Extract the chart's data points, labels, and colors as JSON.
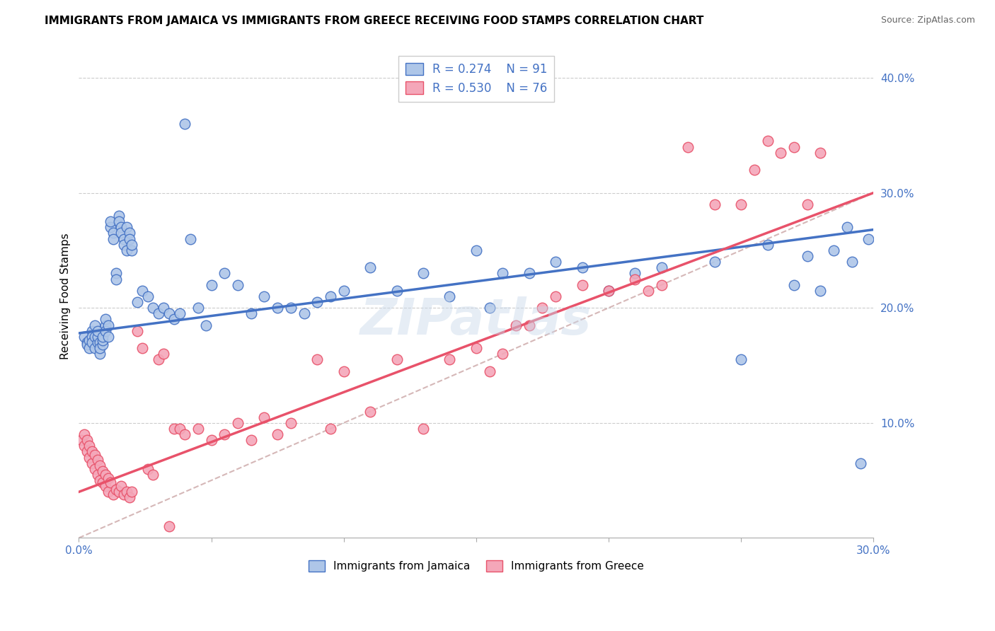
{
  "title": "IMMIGRANTS FROM JAMAICA VS IMMIGRANTS FROM GREECE RECEIVING FOOD STAMPS CORRELATION CHART",
  "source": "Source: ZipAtlas.com",
  "ylabel": "Receiving Food Stamps",
  "xlim": [
    0.0,
    0.3
  ],
  "ylim": [
    0.0,
    0.42
  ],
  "right_yticks": [
    0.1,
    0.2,
    0.3,
    0.4
  ],
  "right_yticklabels": [
    "10.0%",
    "20.0%",
    "30.0%",
    "40.0%"
  ],
  "bottom_xticks": [
    0.0,
    0.05,
    0.1,
    0.15,
    0.2,
    0.25,
    0.3
  ],
  "bottom_xticklabels": [
    "0.0%",
    "",
    "",
    "",
    "",
    "",
    "30.0%"
  ],
  "legend_jamaica": "Immigrants from Jamaica",
  "legend_greece": "Immigrants from Greece",
  "R_jamaica": 0.274,
  "N_jamaica": 91,
  "R_greece": 0.53,
  "N_greece": 76,
  "color_jamaica_face": "#aec6e8",
  "color_jamaica_edge": "#4472c4",
  "color_greece_face": "#f4a7b9",
  "color_greece_edge": "#e8526a",
  "color_diagonal": "#c8a0a0",
  "color_text_blue": "#4472c4",
  "color_text_pink": "#e8526a",
  "title_fontsize": 11,
  "source_fontsize": 9,
  "watermark_text": "ZIPatlas",
  "jamaica_x": [
    0.002,
    0.003,
    0.003,
    0.004,
    0.004,
    0.005,
    0.005,
    0.005,
    0.006,
    0.006,
    0.006,
    0.007,
    0.007,
    0.007,
    0.008,
    0.008,
    0.008,
    0.009,
    0.009,
    0.009,
    0.01,
    0.01,
    0.01,
    0.011,
    0.011,
    0.012,
    0.012,
    0.013,
    0.013,
    0.014,
    0.014,
    0.015,
    0.015,
    0.016,
    0.016,
    0.017,
    0.017,
    0.018,
    0.018,
    0.019,
    0.019,
    0.02,
    0.02,
    0.022,
    0.024,
    0.026,
    0.028,
    0.03,
    0.032,
    0.034,
    0.036,
    0.038,
    0.04,
    0.042,
    0.045,
    0.048,
    0.05,
    0.055,
    0.06,
    0.065,
    0.07,
    0.075,
    0.08,
    0.085,
    0.09,
    0.095,
    0.1,
    0.11,
    0.12,
    0.13,
    0.14,
    0.15,
    0.155,
    0.16,
    0.17,
    0.18,
    0.19,
    0.2,
    0.21,
    0.22,
    0.24,
    0.25,
    0.26,
    0.27,
    0.275,
    0.28,
    0.285,
    0.29,
    0.292,
    0.295,
    0.298
  ],
  "jamaica_y": [
    0.175,
    0.17,
    0.168,
    0.172,
    0.165,
    0.18,
    0.175,
    0.17,
    0.165,
    0.175,
    0.185,
    0.17,
    0.175,
    0.18,
    0.16,
    0.17,
    0.165,
    0.168,
    0.172,
    0.175,
    0.185,
    0.19,
    0.18,
    0.175,
    0.185,
    0.27,
    0.275,
    0.265,
    0.26,
    0.23,
    0.225,
    0.28,
    0.275,
    0.27,
    0.265,
    0.26,
    0.255,
    0.25,
    0.27,
    0.265,
    0.26,
    0.25,
    0.255,
    0.205,
    0.215,
    0.21,
    0.2,
    0.195,
    0.2,
    0.195,
    0.19,
    0.195,
    0.36,
    0.26,
    0.2,
    0.185,
    0.22,
    0.23,
    0.22,
    0.195,
    0.21,
    0.2,
    0.2,
    0.195,
    0.205,
    0.21,
    0.215,
    0.235,
    0.215,
    0.23,
    0.21,
    0.25,
    0.2,
    0.23,
    0.23,
    0.24,
    0.235,
    0.215,
    0.23,
    0.235,
    0.24,
    0.155,
    0.255,
    0.22,
    0.245,
    0.215,
    0.25,
    0.27,
    0.24,
    0.065,
    0.26
  ],
  "greece_x": [
    0.001,
    0.002,
    0.002,
    0.003,
    0.003,
    0.004,
    0.004,
    0.005,
    0.005,
    0.006,
    0.006,
    0.007,
    0.007,
    0.008,
    0.008,
    0.009,
    0.009,
    0.01,
    0.01,
    0.011,
    0.011,
    0.012,
    0.013,
    0.014,
    0.015,
    0.016,
    0.017,
    0.018,
    0.019,
    0.02,
    0.022,
    0.024,
    0.026,
    0.028,
    0.03,
    0.032,
    0.034,
    0.036,
    0.038,
    0.04,
    0.045,
    0.05,
    0.055,
    0.06,
    0.065,
    0.07,
    0.075,
    0.08,
    0.09,
    0.095,
    0.1,
    0.11,
    0.12,
    0.13,
    0.14,
    0.15,
    0.155,
    0.16,
    0.165,
    0.17,
    0.175,
    0.18,
    0.19,
    0.2,
    0.21,
    0.215,
    0.22,
    0.23,
    0.24,
    0.25,
    0.255,
    0.26,
    0.265,
    0.27,
    0.275,
    0.28
  ],
  "greece_y": [
    0.085,
    0.09,
    0.08,
    0.085,
    0.075,
    0.08,
    0.07,
    0.075,
    0.065,
    0.072,
    0.06,
    0.068,
    0.055,
    0.063,
    0.05,
    0.058,
    0.048,
    0.055,
    0.045,
    0.052,
    0.04,
    0.048,
    0.038,
    0.042,
    0.04,
    0.045,
    0.038,
    0.04,
    0.035,
    0.04,
    0.18,
    0.165,
    0.06,
    0.055,
    0.155,
    0.16,
    0.01,
    0.095,
    0.095,
    0.09,
    0.095,
    0.085,
    0.09,
    0.1,
    0.085,
    0.105,
    0.09,
    0.1,
    0.155,
    0.095,
    0.145,
    0.11,
    0.155,
    0.095,
    0.155,
    0.165,
    0.145,
    0.16,
    0.185,
    0.185,
    0.2,
    0.21,
    0.22,
    0.215,
    0.225,
    0.215,
    0.22,
    0.34,
    0.29,
    0.29,
    0.32,
    0.345,
    0.335,
    0.34,
    0.29,
    0.335
  ],
  "jamaica_line_x": [
    0.0,
    0.3
  ],
  "jamaica_line_y": [
    0.178,
    0.268
  ],
  "greece_line_x": [
    0.0,
    0.3
  ],
  "greece_line_y": [
    0.04,
    0.3
  ]
}
